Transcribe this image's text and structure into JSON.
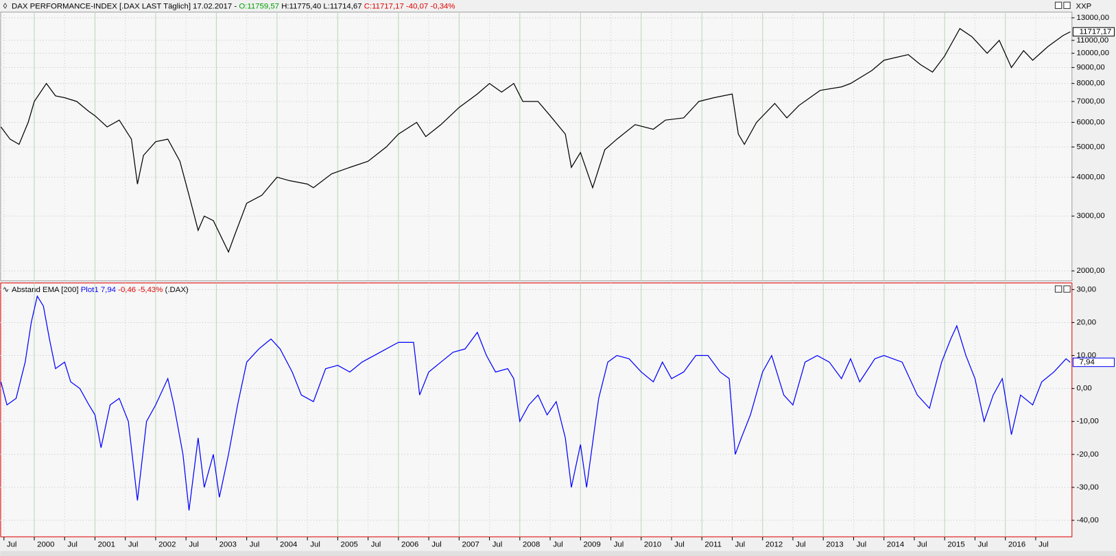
{
  "chart_data": [
    {
      "type": "line",
      "title": "DAX PERFORMANCE-INDEX [.DAX LAST Täglich] 17.02.2017 -",
      "quote": {
        "open": "O:11759,57",
        "high_low": "H:11775,40 L:11714,67",
        "close": "C:11717,17 -40,07 -0,34%"
      },
      "axis_name": "XXP",
      "log_scale": true,
      "grid": true,
      "color": "#000000",
      "xlim": [
        1999.44,
        2017.08
      ],
      "x": [
        1999.45,
        1999.6,
        1999.75,
        1999.9,
        2000.0,
        2000.2,
        2000.35,
        2000.5,
        2000.7,
        2000.9,
        2001.0,
        2001.2,
        2001.4,
        2001.6,
        2001.7,
        2001.8,
        2002.0,
        2002.2,
        2002.4,
        2002.55,
        2002.7,
        2002.8,
        2002.95,
        2003.2,
        2003.3,
        2003.5,
        2003.75,
        2004.0,
        2004.2,
        2004.5,
        2004.6,
        2004.9,
        2005.2,
        2005.5,
        2005.8,
        2006.0,
        2006.3,
        2006.45,
        2006.7,
        2007.0,
        2007.3,
        2007.5,
        2007.7,
        2007.9,
        2008.05,
        2008.3,
        2008.5,
        2008.75,
        2008.85,
        2009.0,
        2009.2,
        2009.4,
        2009.6,
        2009.9,
        2010.2,
        2010.4,
        2010.7,
        2010.95,
        2011.2,
        2011.5,
        2011.6,
        2011.7,
        2011.9,
        2012.2,
        2012.4,
        2012.6,
        2012.95,
        2013.3,
        2013.45,
        2013.8,
        2014.0,
        2014.4,
        2014.6,
        2014.8,
        2015.0,
        2015.25,
        2015.45,
        2015.7,
        2015.9,
        2016.1,
        2016.3,
        2016.45,
        2016.7,
        2016.95,
        2017.07
      ],
      "values": [
        5800,
        5300,
        5100,
        6000,
        7000,
        8000,
        7300,
        7200,
        7000,
        6500,
        6300,
        5800,
        6100,
        5300,
        3800,
        4700,
        5200,
        5300,
        4500,
        3500,
        2700,
        3000,
        2900,
        2300,
        2600,
        3300,
        3500,
        4000,
        3900,
        3800,
        3700,
        4100,
        4300,
        4500,
        5000,
        5500,
        6000,
        5400,
        5900,
        6700,
        7400,
        8000,
        7500,
        8000,
        7000,
        7000,
        6300,
        5500,
        4300,
        4800,
        3700,
        4900,
        5300,
        5900,
        5700,
        6100,
        6200,
        7000,
        7200,
        7400,
        5500,
        5100,
        6000,
        6900,
        6200,
        6800,
        7600,
        7800,
        8000,
        8800,
        9500,
        9900,
        9200,
        8700,
        9800,
        12000,
        11300,
        10000,
        11000,
        9000,
        10200,
        9500,
        10500,
        11400,
        11717.17
      ],
      "last_value_label": "11717,17",
      "ylim": [
        1858,
        13560
      ],
      "yticks": [
        {
          "value": 2000,
          "label": "2000,00"
        },
        {
          "value": 3000,
          "label": "3000,00"
        },
        {
          "value": 4000,
          "label": "4000,00"
        },
        {
          "value": 5000,
          "label": "5000,00"
        },
        {
          "value": 6000,
          "label": "6000,00"
        },
        {
          "value": 7000,
          "label": "7000,00"
        },
        {
          "value": 8000,
          "label": "8000,00"
        },
        {
          "value": 9000,
          "label": "9000,00"
        },
        {
          "value": 10000,
          "label": "10000,00"
        },
        {
          "value": 11000,
          "label": "11000,00"
        },
        {
          "value": 13000,
          "label": "13000,00"
        }
      ]
    },
    {
      "type": "line",
      "title": "Abstand EMA [200]",
      "plot_label": "Plot1 7,94",
      "change": "-0,46 -5,43%",
      "symbol": "(.DAX)",
      "grid": true,
      "color": "#0000ff",
      "xlim": [
        1999.44,
        2017.08
      ],
      "xticks": [
        {
          "value": 1999.5,
          "label": "Jul"
        },
        {
          "value": 2000,
          "label": "2000"
        },
        {
          "value": 2000.5,
          "label": "Jul"
        },
        {
          "value": 2001,
          "label": "2001"
        },
        {
          "value": 2001.5,
          "label": "Jul"
        },
        {
          "value": 2002,
          "label": "2002"
        },
        {
          "value": 2002.5,
          "label": "Jul"
        },
        {
          "value": 2003,
          "label": "2003"
        },
        {
          "value": 2003.5,
          "label": "Jul"
        },
        {
          "value": 2004,
          "label": "2004"
        },
        {
          "value": 2004.5,
          "label": "Jul"
        },
        {
          "value": 2005,
          "label": "2005"
        },
        {
          "value": 2005.5,
          "label": "Jul"
        },
        {
          "value": 2006,
          "label": "2006"
        },
        {
          "value": 2006.5,
          "label": "Jul"
        },
        {
          "value": 2007,
          "label": "2007"
        },
        {
          "value": 2007.5,
          "label": "Jul"
        },
        {
          "value": 2008,
          "label": "2008"
        },
        {
          "value": 2008.5,
          "label": "Jul"
        },
        {
          "value": 2009,
          "label": "2009"
        },
        {
          "value": 2009.5,
          "label": "Jul"
        },
        {
          "value": 2010,
          "label": "2010"
        },
        {
          "value": 2010.5,
          "label": "Jul"
        },
        {
          "value": 2011,
          "label": "2011"
        },
        {
          "value": 2011.5,
          "label": "Jul"
        },
        {
          "value": 2012,
          "label": "2012"
        },
        {
          "value": 2012.5,
          "label": "Jul"
        },
        {
          "value": 2013,
          "label": "2013"
        },
        {
          "value": 2013.5,
          "label": "Jul"
        },
        {
          "value": 2014,
          "label": "2014"
        },
        {
          "value": 2014.5,
          "label": "Jul"
        },
        {
          "value": 2015,
          "label": "2015"
        },
        {
          "value": 2015.5,
          "label": "Jul"
        },
        {
          "value": 2016,
          "label": "2016"
        },
        {
          "value": 2016.5,
          "label": "Jul"
        }
      ],
      "x": [
        1999.45,
        1999.55,
        1999.7,
        1999.85,
        1999.95,
        2000.05,
        2000.15,
        2000.25,
        2000.35,
        2000.5,
        2000.6,
        2000.75,
        2000.9,
        2001.0,
        2001.1,
        2001.25,
        2001.4,
        2001.55,
        2001.7,
        2001.85,
        2002.0,
        2002.2,
        2002.3,
        2002.45,
        2002.55,
        2002.7,
        2002.8,
        2002.95,
        2003.05,
        2003.2,
        2003.35,
        2003.5,
        2003.7,
        2003.9,
        2004.05,
        2004.25,
        2004.4,
        2004.6,
        2004.8,
        2005.0,
        2005.2,
        2005.4,
        2005.6,
        2005.8,
        2006.0,
        2006.25,
        2006.35,
        2006.5,
        2006.7,
        2006.9,
        2007.1,
        2007.3,
        2007.45,
        2007.6,
        2007.8,
        2007.9,
        2008.0,
        2008.15,
        2008.3,
        2008.45,
        2008.6,
        2008.75,
        2008.85,
        2009.0,
        2009.1,
        2009.3,
        2009.45,
        2009.6,
        2009.8,
        2010.0,
        2010.2,
        2010.35,
        2010.5,
        2010.7,
        2010.9,
        2011.1,
        2011.3,
        2011.45,
        2011.55,
        2011.65,
        2011.8,
        2012.0,
        2012.15,
        2012.35,
        2012.5,
        2012.7,
        2012.9,
        2013.1,
        2013.3,
        2013.45,
        2013.6,
        2013.85,
        2014.0,
        2014.3,
        2014.55,
        2014.75,
        2014.95,
        2015.1,
        2015.2,
        2015.35,
        2015.5,
        2015.65,
        2015.8,
        2015.95,
        2016.1,
        2016.25,
        2016.45,
        2016.6,
        2016.8,
        2016.95,
        2017.0,
        2017.07
      ],
      "values": [
        2,
        -5,
        -3,
        8,
        20,
        28,
        25,
        15,
        6,
        8,
        2,
        0,
        -5,
        -8,
        -18,
        -5,
        -3,
        -10,
        -34,
        -10,
        -5,
        3,
        -5,
        -20,
        -37,
        -15,
        -30,
        -20,
        -33,
        -20,
        -5,
        8,
        12,
        15,
        12,
        5,
        -2,
        -4,
        6,
        7,
        5,
        8,
        10,
        12,
        14,
        14,
        -2,
        5,
        8,
        11,
        12,
        17,
        10,
        5,
        6,
        3,
        -10,
        -5,
        -2,
        -8,
        -4,
        -15,
        -30,
        -17,
        -30,
        -3,
        8,
        10,
        9,
        5,
        2,
        8,
        3,
        5,
        10,
        10,
        5,
        3,
        -20,
        -15,
        -8,
        5,
        10,
        -2,
        -5,
        8,
        10,
        8,
        3,
        9,
        2,
        9,
        10,
        8,
        -2,
        -6,
        8,
        15,
        19,
        10,
        3,
        -10,
        -2,
        3,
        -14,
        -2,
        -5,
        2,
        5,
        8,
        9,
        7.94
      ],
      "last_value_label": "7,94",
      "ylim": [
        -45,
        32
      ],
      "yticks": [
        {
          "value": 30,
          "label": "30,00"
        },
        {
          "value": 20,
          "label": "20,00"
        },
        {
          "value": 10,
          "label": "10,00"
        },
        {
          "value": 0,
          "label": "0,00"
        },
        {
          "value": -10,
          "label": "-10,00"
        },
        {
          "value": -20,
          "label": "-20,00"
        },
        {
          "value": -30,
          "label": "-30,00"
        },
        {
          "value": -40,
          "label": "-40,00"
        }
      ]
    }
  ]
}
